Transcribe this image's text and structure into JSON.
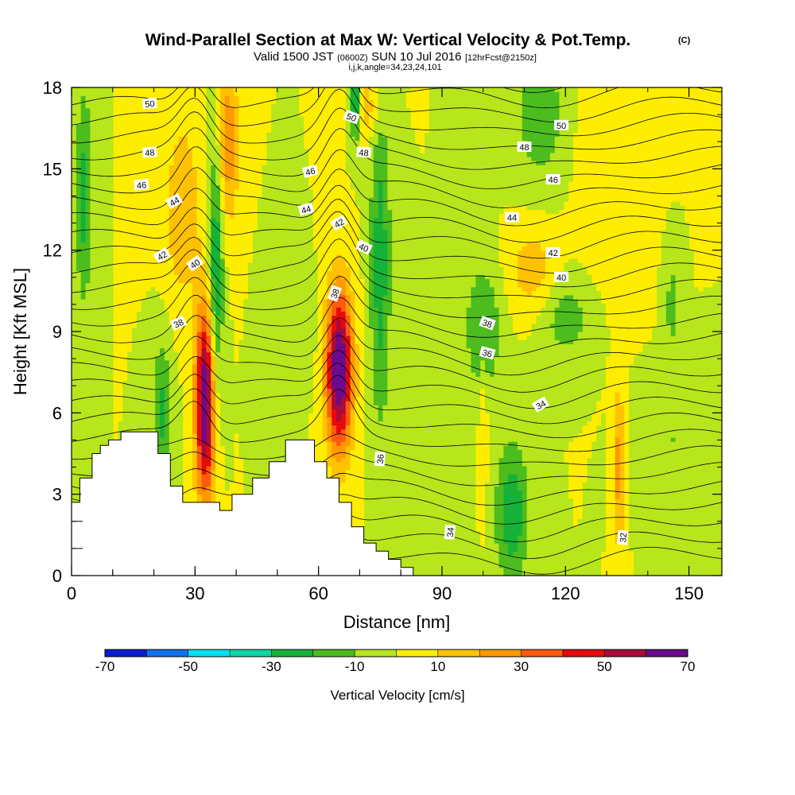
{
  "chart_data": {
    "type": "heatmap",
    "title": "Wind-Parallel Section at Max W: Vertical Velocity & Pot.Temp.",
    "title_mark": "(C)",
    "subtitle": {
      "valid_prefix": "Valid 1500 JST",
      "utc": "(0600Z)",
      "date": "SUN 10 Jul 2016",
      "forecast": "[12hrFcst@2150z]"
    },
    "params": "i,j,k,angle=34,23,24,101",
    "xlabel": "Distance [nm]",
    "ylabel": "Height [Kft MSL]",
    "xlim": [
      0,
      158
    ],
    "ylim": [
      0,
      18
    ],
    "xticks": [
      "0",
      "30",
      "60",
      "90",
      "120",
      "150"
    ],
    "yticks": [
      "0",
      "3",
      "6",
      "9",
      "12",
      "15",
      "18"
    ],
    "colorbar": {
      "label": "Vertical Velocity [cm/s]",
      "bounds": [
        -70,
        -60,
        -50,
        -40,
        -30,
        -20,
        -10,
        0,
        10,
        20,
        30,
        40,
        50,
        60,
        70
      ],
      "tick_labels": [
        "-70",
        "-50",
        "-30",
        "-10",
        "10",
        "30",
        "50",
        "70"
      ],
      "colors": [
        "#0a1bd6",
        "#0f72ef",
        "#06e0f2",
        "#0bd6a6",
        "#16b238",
        "#4cbc1e",
        "#b6e61b",
        "#ffed00",
        "#ffc200",
        "#ff9900",
        "#ff5a10",
        "#e60a0a",
        "#aa0a3c",
        "#6a0a8c"
      ]
    },
    "terrain": [
      [
        0,
        2.7
      ],
      [
        2,
        2.7
      ],
      [
        2,
        3.6
      ],
      [
        5,
        3.6
      ],
      [
        5,
        4.5
      ],
      [
        7,
        4.5
      ],
      [
        7,
        4.8
      ],
      [
        9,
        4.8
      ],
      [
        9,
        5.0
      ],
      [
        12,
        5.0
      ],
      [
        12,
        5.3
      ],
      [
        21,
        5.3
      ],
      [
        21,
        4.5
      ],
      [
        24,
        4.5
      ],
      [
        24,
        3.3
      ],
      [
        27,
        3.3
      ],
      [
        27,
        2.7
      ],
      [
        36,
        2.7
      ],
      [
        36,
        2.4
      ],
      [
        39,
        2.4
      ],
      [
        39,
        3.0
      ],
      [
        44,
        3.0
      ],
      [
        44,
        3.6
      ],
      [
        48,
        3.6
      ],
      [
        48,
        4.2
      ],
      [
        52,
        4.2
      ],
      [
        52,
        5.0
      ],
      [
        59,
        5.0
      ],
      [
        59,
        4.2
      ],
      [
        62,
        4.2
      ],
      [
        62,
        3.6
      ],
      [
        65,
        3.6
      ],
      [
        65,
        2.7
      ],
      [
        68,
        2.7
      ],
      [
        68,
        1.8
      ],
      [
        71,
        1.8
      ],
      [
        71,
        1.2
      ],
      [
        74,
        1.2
      ],
      [
        74,
        0.9
      ],
      [
        77,
        0.9
      ],
      [
        77,
        0.6
      ],
      [
        80,
        0.6
      ],
      [
        80,
        0.3
      ],
      [
        83,
        0.3
      ],
      [
        83,
        0
      ],
      [
        158,
        0
      ]
    ],
    "w_cells": [
      {
        "x": 65,
        "y": 7.6,
        "rx": 3.2,
        "ry": 3.0,
        "w": 74
      },
      {
        "x": 32.5,
        "y": 6.4,
        "rx": 2.4,
        "ry": 3.6,
        "w": 72
      },
      {
        "x": 38,
        "y": 16,
        "rx": 2.5,
        "ry": 3.0,
        "w": 28
      },
      {
        "x": 27,
        "y": 13.5,
        "rx": 4.5,
        "ry": 3.5,
        "w": 18
      },
      {
        "x": 72,
        "y": 17.3,
        "rx": 3.5,
        "ry": 1.2,
        "w": 16
      },
      {
        "x": 112,
        "y": 11.3,
        "rx": 6,
        "ry": 1.6,
        "w": 16
      },
      {
        "x": 133,
        "y": 4,
        "rx": 1.2,
        "ry": 3.0,
        "w": 26
      },
      {
        "x": 132,
        "y": 15.5,
        "rx": 8,
        "ry": 4,
        "w": 10
      },
      {
        "x": 100,
        "y": 5.5,
        "rx": 1,
        "ry": 2.8,
        "w": 12
      },
      {
        "x": 35,
        "y": 11,
        "rx": 1.8,
        "ry": 5,
        "w": -32
      },
      {
        "x": 75,
        "y": 11.5,
        "rx": 2.5,
        "ry": 6,
        "w": -26
      },
      {
        "x": 69,
        "y": 17.5,
        "rx": 1.2,
        "ry": 1.5,
        "w": -38
      },
      {
        "x": 3,
        "y": 14,
        "rx": 2,
        "ry": 4,
        "w": -24
      },
      {
        "x": 107,
        "y": 2.3,
        "rx": 4,
        "ry": 2.6,
        "w": -28
      },
      {
        "x": 100,
        "y": 9.1,
        "rx": 4.5,
        "ry": 2.5,
        "w": -20
      },
      {
        "x": 120,
        "y": 9.5,
        "rx": 6,
        "ry": 1.5,
        "w": -16
      },
      {
        "x": 114,
        "y": 17.0,
        "rx": 6,
        "ry": 2.5,
        "w": -18
      },
      {
        "x": 22,
        "y": 6,
        "rx": 2.5,
        "ry": 2.8,
        "w": -22
      },
      {
        "x": 54,
        "y": 9,
        "rx": 5,
        "ry": 2,
        "w": -10
      },
      {
        "x": 146,
        "y": 5,
        "rx": 7,
        "ry": 2,
        "w": -10
      },
      {
        "x": 146,
        "y": 10,
        "rx": 2,
        "ry": 2,
        "w": -14
      }
    ],
    "theta_levels": [
      32,
      34,
      36,
      38,
      40,
      42,
      44,
      46,
      48,
      50
    ],
    "theta_labels": [
      {
        "text": "50",
        "x": 19,
        "y": 17.4,
        "angle": -5
      },
      {
        "text": "48",
        "x": 19,
        "y": 15.6,
        "angle": -5
      },
      {
        "text": "46",
        "x": 17,
        "y": 14.4,
        "angle": -5
      },
      {
        "text": "44",
        "x": 25,
        "y": 13.8,
        "angle": -30
      },
      {
        "text": "42",
        "x": 22,
        "y": 11.8,
        "angle": -30
      },
      {
        "text": "40",
        "x": 30,
        "y": 11.5,
        "angle": -35
      },
      {
        "text": "38",
        "x": 26,
        "y": 9.3,
        "angle": -25
      },
      {
        "text": "50",
        "x": 68,
        "y": 16.9,
        "angle": 20
      },
      {
        "text": "48",
        "x": 71,
        "y": 15.6,
        "angle": 5
      },
      {
        "text": "46",
        "x": 58,
        "y": 14.9,
        "angle": -15
      },
      {
        "text": "44",
        "x": 57,
        "y": 13.5,
        "angle": -15
      },
      {
        "text": "42",
        "x": 65,
        "y": 13.0,
        "angle": -30
      },
      {
        "text": "40",
        "x": 71,
        "y": 12.1,
        "angle": 25
      },
      {
        "text": "38",
        "x": 64,
        "y": 10.4,
        "angle": -70
      },
      {
        "text": "50",
        "x": 119,
        "y": 16.6,
        "angle": 0
      },
      {
        "text": "48",
        "x": 110,
        "y": 15.8,
        "angle": 0
      },
      {
        "text": "46",
        "x": 117,
        "y": 14.6,
        "angle": 0
      },
      {
        "text": "44",
        "x": 107,
        "y": 13.2,
        "angle": 0
      },
      {
        "text": "42",
        "x": 117,
        "y": 11.9,
        "angle": 0
      },
      {
        "text": "40",
        "x": 119,
        "y": 11.0,
        "angle": 0
      },
      {
        "text": "38",
        "x": 101,
        "y": 9.3,
        "angle": 20
      },
      {
        "text": "36",
        "x": 101,
        "y": 8.2,
        "angle": 15
      },
      {
        "text": "34",
        "x": 114,
        "y": 6.3,
        "angle": -30
      },
      {
        "text": "36",
        "x": 75,
        "y": 4.3,
        "angle": -85
      },
      {
        "text": "34",
        "x": 92,
        "y": 1.6,
        "angle": -85
      },
      {
        "text": "32",
        "x": 134,
        "y": 1.4,
        "angle": -85
      }
    ]
  }
}
